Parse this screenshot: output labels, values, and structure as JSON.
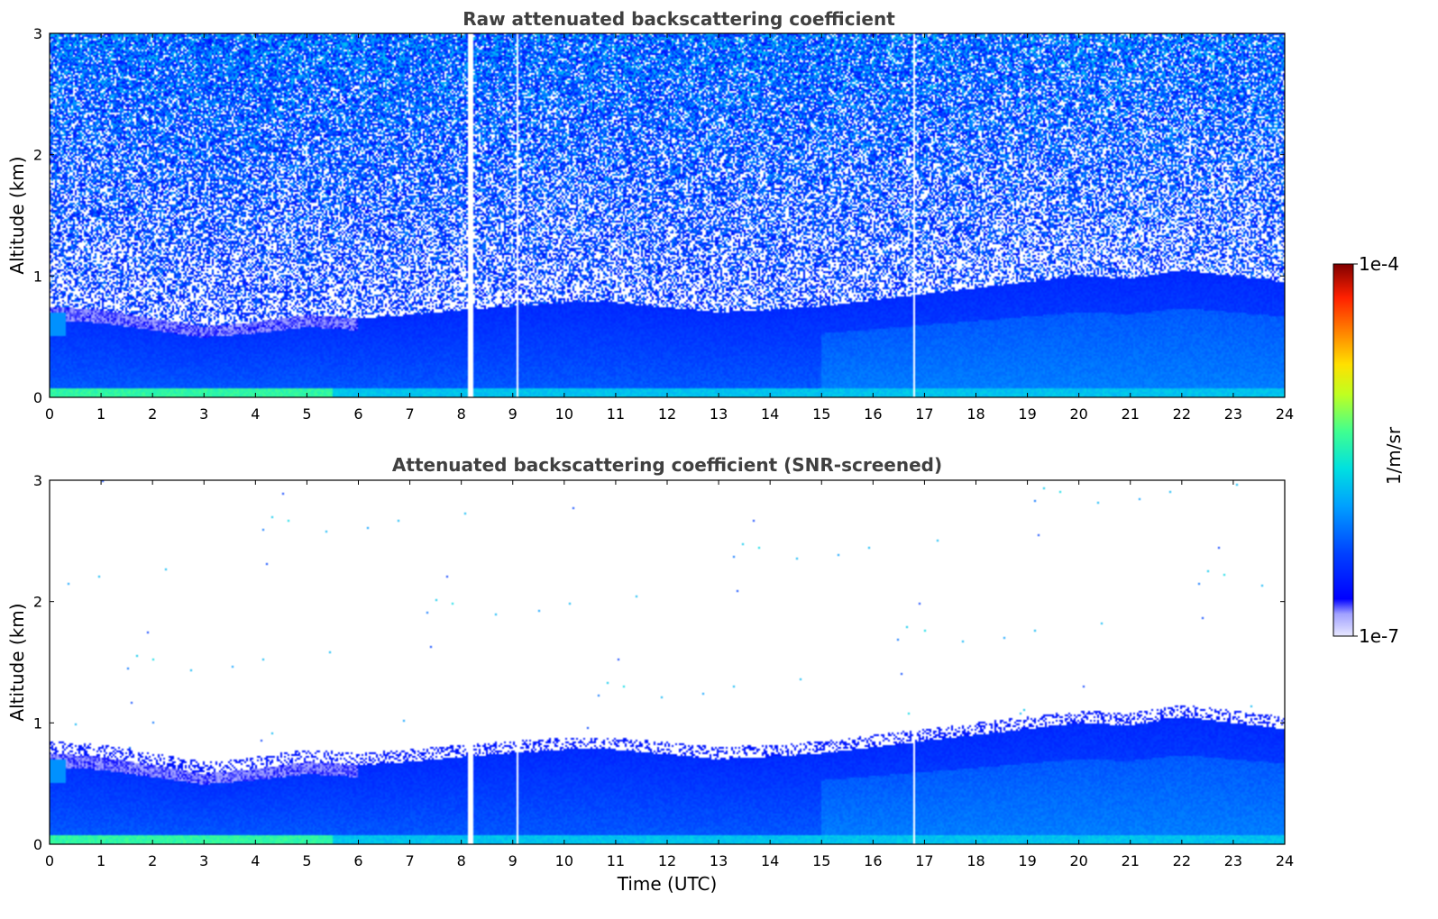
{
  "chart_data": [
    {
      "type": "heatmap",
      "title": "Raw attenuated backscattering coefficient",
      "ylabel": "Altitude (km)",
      "xlabel": "",
      "xlim": [
        0,
        24
      ],
      "ylim": [
        0,
        3
      ],
      "x_ticks": [
        "0",
        "1",
        "2",
        "3",
        "4",
        "5",
        "6",
        "7",
        "8",
        "9",
        "10",
        "11",
        "12",
        "13",
        "14",
        "15",
        "16",
        "17",
        "18",
        "19",
        "20",
        "21",
        "22",
        "23",
        "24"
      ],
      "y_ticks": [
        "0",
        "1",
        "2",
        "3"
      ],
      "gap_times_utc": [
        8.15,
        8.2,
        9.1,
        16.8
      ],
      "screened": false
    },
    {
      "type": "heatmap",
      "title": "Attenuated backscattering coefficient (SNR-screened)",
      "ylabel": "Altitude (km)",
      "xlabel": "Time (UTC)",
      "xlim": [
        0,
        24
      ],
      "ylim": [
        0,
        3
      ],
      "x_ticks": [
        "0",
        "1",
        "2",
        "3",
        "4",
        "5",
        "6",
        "7",
        "8",
        "9",
        "10",
        "11",
        "12",
        "13",
        "14",
        "15",
        "16",
        "17",
        "18",
        "19",
        "20",
        "21",
        "22",
        "23",
        "24"
      ],
      "y_ticks": [
        "0",
        "1",
        "2",
        "3"
      ],
      "gap_times_utc": [
        8.15,
        8.2,
        9.1,
        16.8
      ],
      "screened": true,
      "boundary_layer_top_km": {
        "x": [
          0,
          1,
          2,
          3,
          4,
          5,
          6,
          7,
          8,
          9,
          10,
          11,
          12,
          13,
          14,
          15,
          16,
          17,
          18,
          19,
          20,
          21,
          22,
          23,
          24
        ],
        "y": [
          0.75,
          0.72,
          0.65,
          0.58,
          0.62,
          0.68,
          0.65,
          0.68,
          0.72,
          0.75,
          0.78,
          0.78,
          0.74,
          0.7,
          0.72,
          0.75,
          0.8,
          0.85,
          0.9,
          0.95,
          1.0,
          0.98,
          1.05,
          1.0,
          0.95
        ]
      }
    }
  ],
  "colorbar": {
    "label": "1/m/sr",
    "min_label": "1e-7",
    "max_label": "1e-4",
    "colormap": "jet-with-white-bottom"
  }
}
